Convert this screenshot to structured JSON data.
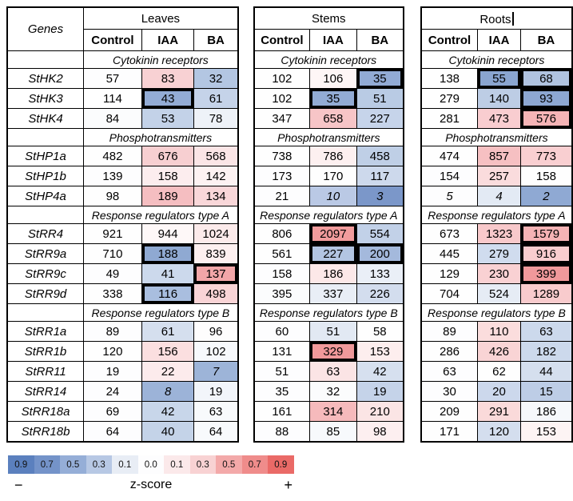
{
  "chart_data": {
    "type": "heatmap",
    "genes_label": "Genes",
    "tissues": [
      "Leaves",
      "Stems",
      "Roots"
    ],
    "conditions": [
      "Control",
      "IAA",
      "BA"
    ],
    "legend": {
      "values": [
        "0.9",
        "0.7",
        "0.5",
        "0.3",
        "0.1",
        "0.0",
        "0.1",
        "0.3",
        "0.5",
        "0.7",
        "0.9"
      ],
      "colors": [
        "#5b80be",
        "#7493c9",
        "#95aed7",
        "#b7c8e4",
        "#e8edf5",
        "#fdfdfe",
        "#fbe9ea",
        "#f8d2d3",
        "#f3a9a9",
        "#ef8c8b",
        "#ea6a67"
      ],
      "minus": "−",
      "label": "z-score",
      "plus": "+"
    },
    "sections": [
      {
        "title": "Cytokinin receptors",
        "rows": [
          {
            "gene": "StHK2",
            "cells": {
              "leaves": [
                {
                  "v": "57",
                  "c": "#fdfdfe"
                },
                {
                  "v": "83",
                  "c": "#f8d1d3"
                },
                {
                  "v": "32",
                  "c": "#b3c6e2"
                }
              ],
              "stems": [
                {
                  "v": "102",
                  "c": "#fefefe"
                },
                {
                  "v": "106",
                  "c": "#fef6f6"
                },
                {
                  "v": "35",
                  "c": "#92abd4",
                  "b": true
                }
              ],
              "roots": [
                {
                  "v": "138",
                  "c": "#fefefe"
                },
                {
                  "v": "55",
                  "c": "#8aa5d0",
                  "b": true
                },
                {
                  "v": "68",
                  "c": "#b0c3e0",
                  "b": true
                }
              ]
            }
          },
          {
            "gene": "StHK3",
            "cells": {
              "leaves": [
                {
                  "v": "114",
                  "c": "#ffffff"
                },
                {
                  "v": "43",
                  "c": "#93acd5",
                  "b": true
                },
                {
                  "v": "61",
                  "c": "#c5d3e9"
                }
              ],
              "stems": [
                {
                  "v": "102",
                  "c": "#fefefe"
                },
                {
                  "v": "35",
                  "c": "#92abd4",
                  "b": true
                },
                {
                  "v": "51",
                  "c": "#b9cbe4"
                }
              ],
              "roots": [
                {
                  "v": "279",
                  "c": "#fefefe"
                },
                {
                  "v": "140",
                  "c": "#bdcde5"
                },
                {
                  "v": "93",
                  "c": "#8da7d2",
                  "b": true
                }
              ]
            }
          },
          {
            "gene": "StHK4",
            "cells": {
              "leaves": [
                {
                  "v": "84",
                  "c": "#fbfcfd"
                },
                {
                  "v": "53",
                  "c": "#c3d2e8"
                },
                {
                  "v": "78",
                  "c": "#eef2f8"
                }
              ],
              "stems": [
                {
                  "v": "347",
                  "c": "#fefefe"
                },
                {
                  "v": "658",
                  "c": "#f7c5c7"
                },
                {
                  "v": "227",
                  "c": "#c6d4ea"
                }
              ],
              "roots": [
                {
                  "v": "281",
                  "c": "#fefefe"
                },
                {
                  "v": "473",
                  "c": "#f9cdd0"
                },
                {
                  "v": "576",
                  "c": "#f5b4b6",
                  "b": true
                }
              ]
            }
          }
        ]
      },
      {
        "title": "Phosphotransmitters",
        "rows": [
          {
            "gene": "StHP1a",
            "cells": {
              "leaves": [
                {
                  "v": "482",
                  "c": "#fefefe"
                },
                {
                  "v": "676",
                  "c": "#f7cfd1"
                },
                {
                  "v": "568",
                  "c": "#fbe5e6"
                }
              ],
              "stems": [
                {
                  "v": "738",
                  "c": "#fefefe"
                },
                {
                  "v": "786",
                  "c": "#fdf0f0"
                },
                {
                  "v": "458",
                  "c": "#bfcfe6"
                }
              ],
              "roots": [
                {
                  "v": "474",
                  "c": "#fefefe"
                },
                {
                  "v": "857",
                  "c": "#f6c0c2"
                },
                {
                  "v": "773",
                  "c": "#f9cfd1"
                }
              ]
            }
          },
          {
            "gene": "StHP1b",
            "cells": {
              "leaves": [
                {
                  "v": "139",
                  "c": "#fdfdfe"
                },
                {
                  "v": "158",
                  "c": "#fcedee"
                },
                {
                  "v": "142",
                  "c": "#fdf2f2"
                }
              ],
              "stems": [
                {
                  "v": "173",
                  "c": "#fdfdfe"
                },
                {
                  "v": "170",
                  "c": "#fefefe"
                },
                {
                  "v": "117",
                  "c": "#cdd9ec"
                }
              ],
              "roots": [
                {
                  "v": "154",
                  "c": "#fdfdfe"
                },
                {
                  "v": "257",
                  "c": "#fadcdd"
                },
                {
                  "v": "158",
                  "c": "#fefefe"
                }
              ]
            }
          },
          {
            "gene": "StHP4a",
            "cells": {
              "leaves": [
                {
                  "v": "98",
                  "c": "#fefefe"
                },
                {
                  "v": "189",
                  "c": "#f5bec1"
                },
                {
                  "v": "134",
                  "c": "#f9d7d9"
                }
              ],
              "stems": [
                {
                  "v": "21",
                  "c": "#fdfdfe"
                },
                {
                  "v": "10",
                  "c": "#bac9e5",
                  "i": true
                },
                {
                  "v": "3",
                  "c": "#7b97c9",
                  "i": true
                }
              ],
              "roots": [
                {
                  "v": "5",
                  "c": "#fdfdfe",
                  "i": true
                },
                {
                  "v": "4",
                  "c": "#e3eaf4",
                  "i": true
                },
                {
                  "v": "2",
                  "c": "#8fa9d3",
                  "i": true
                }
              ]
            }
          }
        ]
      },
      {
        "title": "Response regulators type A",
        "rows": [
          {
            "gene": "StRR4",
            "cells": {
              "leaves": [
                {
                  "v": "921",
                  "c": "#fefefe"
                },
                {
                  "v": "944",
                  "c": "#fef8f8"
                },
                {
                  "v": "1024",
                  "c": "#fcebeb"
                }
              ],
              "stems": [
                {
                  "v": "806",
                  "c": "#fefefe"
                },
                {
                  "v": "2097",
                  "c": "#f29c9d",
                  "b": true
                },
                {
                  "v": "554",
                  "c": "#c2d1e8"
                }
              ],
              "roots": [
                {
                  "v": "673",
                  "c": "#fefefe"
                },
                {
                  "v": "1323",
                  "c": "#f8c9cb"
                },
                {
                  "v": "1579",
                  "c": "#f5b3b5",
                  "b": true
                }
              ]
            }
          },
          {
            "gene": "StRR9a",
            "cells": {
              "leaves": [
                {
                  "v": "710",
                  "c": "#fefefe"
                },
                {
                  "v": "188",
                  "c": "#8fa9d2",
                  "b": true
                },
                {
                  "v": "839",
                  "c": "#fdf0f0"
                }
              ],
              "stems": [
                {
                  "v": "561",
                  "c": "#fefefe"
                },
                {
                  "v": "227",
                  "c": "#b3c5e2",
                  "b": true
                },
                {
                  "v": "200",
                  "c": "#a4b9dc",
                  "b": true
                }
              ],
              "roots": [
                {
                  "v": "445",
                  "c": "#fefefe"
                },
                {
                  "v": "279",
                  "c": "#d0dcee"
                },
                {
                  "v": "916",
                  "c": "#f9cdcf",
                  "b": true
                }
              ]
            }
          },
          {
            "gene": "StRR9c",
            "cells": {
              "leaves": [
                {
                  "v": "49",
                  "c": "#fdfdfe"
                },
                {
                  "v": "41",
                  "c": "#ccd9ec"
                },
                {
                  "v": "137",
                  "c": "#f2a6a8",
                  "b": true
                }
              ],
              "stems": [
                {
                  "v": "158",
                  "c": "#fdfdfe"
                },
                {
                  "v": "186",
                  "c": "#fce8e8"
                },
                {
                  "v": "133",
                  "c": "#eaeff7"
                }
              ],
              "roots": [
                {
                  "v": "129",
                  "c": "#fefefe"
                },
                {
                  "v": "230",
                  "c": "#f9d1d3"
                },
                {
                  "v": "399",
                  "c": "#f0999b",
                  "b": true
                }
              ]
            }
          },
          {
            "gene": "StRR9d",
            "cells": {
              "leaves": [
                {
                  "v": "338",
                  "c": "#fefefe"
                },
                {
                  "v": "116",
                  "c": "#a9bedf",
                  "b": true
                },
                {
                  "v": "498",
                  "c": "#f9d4d6"
                }
              ],
              "stems": [
                {
                  "v": "395",
                  "c": "#fbfcfd"
                },
                {
                  "v": "337",
                  "c": "#e9eef6"
                },
                {
                  "v": "226",
                  "c": "#d3ddee"
                }
              ],
              "roots": [
                {
                  "v": "704",
                  "c": "#fefefe"
                },
                {
                  "v": "524",
                  "c": "#e6ecf5"
                },
                {
                  "v": "1289",
                  "c": "#f8cbcd"
                }
              ]
            }
          }
        ]
      },
      {
        "title": "Response regulators type B",
        "rows": [
          {
            "gene": "StRR1a",
            "cells": {
              "leaves": [
                {
                  "v": "89",
                  "c": "#fdfdfe"
                },
                {
                  "v": "61",
                  "c": "#d5dfee"
                },
                {
                  "v": "96",
                  "c": "#fefdfd"
                }
              ],
              "stems": [
                {
                  "v": "60",
                  "c": "#fdfdfe"
                },
                {
                  "v": "51",
                  "c": "#e2e9f3"
                },
                {
                  "v": "58",
                  "c": "#fefefe"
                }
              ],
              "roots": [
                {
                  "v": "89",
                  "c": "#fdfdfe"
                },
                {
                  "v": "110",
                  "c": "#fbdddd"
                },
                {
                  "v": "63",
                  "c": "#ccd9ec"
                }
              ]
            }
          },
          {
            "gene": "StRR1b",
            "cells": {
              "leaves": [
                {
                  "v": "120",
                  "c": "#fefefe"
                },
                {
                  "v": "156",
                  "c": "#fbdfe0"
                },
                {
                  "v": "102",
                  "c": "#f7f9fc"
                }
              ],
              "stems": [
                {
                  "v": "131",
                  "c": "#fefefe"
                },
                {
                  "v": "329",
                  "c": "#f0999b",
                  "b": true
                },
                {
                  "v": "153",
                  "c": "#fdeeee"
                }
              ],
              "roots": [
                {
                  "v": "286",
                  "c": "#fefefe"
                },
                {
                  "v": "426",
                  "c": "#f9d4d5"
                },
                {
                  "v": "182",
                  "c": "#ccd9ec"
                }
              ]
            }
          },
          {
            "gene": "StRR11",
            "cells": {
              "leaves": [
                {
                  "v": "19",
                  "c": "#fdfdfe"
                },
                {
                  "v": "22",
                  "c": "#fcebec"
                },
                {
                  "v": "7",
                  "c": "#9db4d8",
                  "i": true
                }
              ],
              "stems": [
                {
                  "v": "51",
                  "c": "#fdfdfe"
                },
                {
                  "v": "63",
                  "c": "#fbe4e5"
                },
                {
                  "v": "42",
                  "c": "#d6e0ef"
                }
              ],
              "roots": [
                {
                  "v": "63",
                  "c": "#fdfdfe"
                },
                {
                  "v": "62",
                  "c": "#fefefe"
                },
                {
                  "v": "44",
                  "c": "#d5dfee"
                }
              ]
            }
          },
          {
            "gene": "StRR14",
            "cells": {
              "leaves": [
                {
                  "v": "24",
                  "c": "#fdfdfe"
                },
                {
                  "v": "8",
                  "c": "#9cb3d8",
                  "i": true
                },
                {
                  "v": "19",
                  "c": "#f2f5fa"
                }
              ],
              "stems": [
                {
                  "v": "35",
                  "c": "#fdfdfe"
                },
                {
                  "v": "32",
                  "c": "#fbfcfd"
                },
                {
                  "v": "19",
                  "c": "#c5d3e9"
                }
              ],
              "roots": [
                {
                  "v": "30",
                  "c": "#fdfdfe"
                },
                {
                  "v": "20",
                  "c": "#ccd8ec"
                },
                {
                  "v": "15",
                  "c": "#bdcde6"
                }
              ]
            }
          },
          {
            "gene": "StRR18a",
            "cells": {
              "leaves": [
                {
                  "v": "69",
                  "c": "#fdfdfe"
                },
                {
                  "v": "42",
                  "c": "#c8d6ea"
                },
                {
                  "v": "63",
                  "c": "#f8fafc"
                }
              ],
              "stems": [
                {
                  "v": "161",
                  "c": "#fefefe"
                },
                {
                  "v": "314",
                  "c": "#f6babc"
                },
                {
                  "v": "210",
                  "c": "#fbe5e5"
                }
              ],
              "roots": [
                {
                  "v": "209",
                  "c": "#fefefe"
                },
                {
                  "v": "291",
                  "c": "#fadada"
                },
                {
                  "v": "186",
                  "c": "#f6f8fb"
                }
              ]
            }
          },
          {
            "gene": "StRR18b",
            "cells": {
              "leaves": [
                {
                  "v": "64",
                  "c": "#fdfdfe"
                },
                {
                  "v": "40",
                  "c": "#c4d3e8"
                },
                {
                  "v": "64",
                  "c": "#f8fafc"
                }
              ],
              "stems": [
                {
                  "v": "88",
                  "c": "#fdfdfe"
                },
                {
                  "v": "85",
                  "c": "#f7f9fc"
                },
                {
                  "v": "98",
                  "c": "#fdeff0"
                }
              ],
              "roots": [
                {
                  "v": "171",
                  "c": "#fefefe"
                },
                {
                  "v": "120",
                  "c": "#d4deee"
                },
                {
                  "v": "153",
                  "c": "#fdf4f4"
                }
              ]
            }
          }
        ]
      }
    ]
  }
}
